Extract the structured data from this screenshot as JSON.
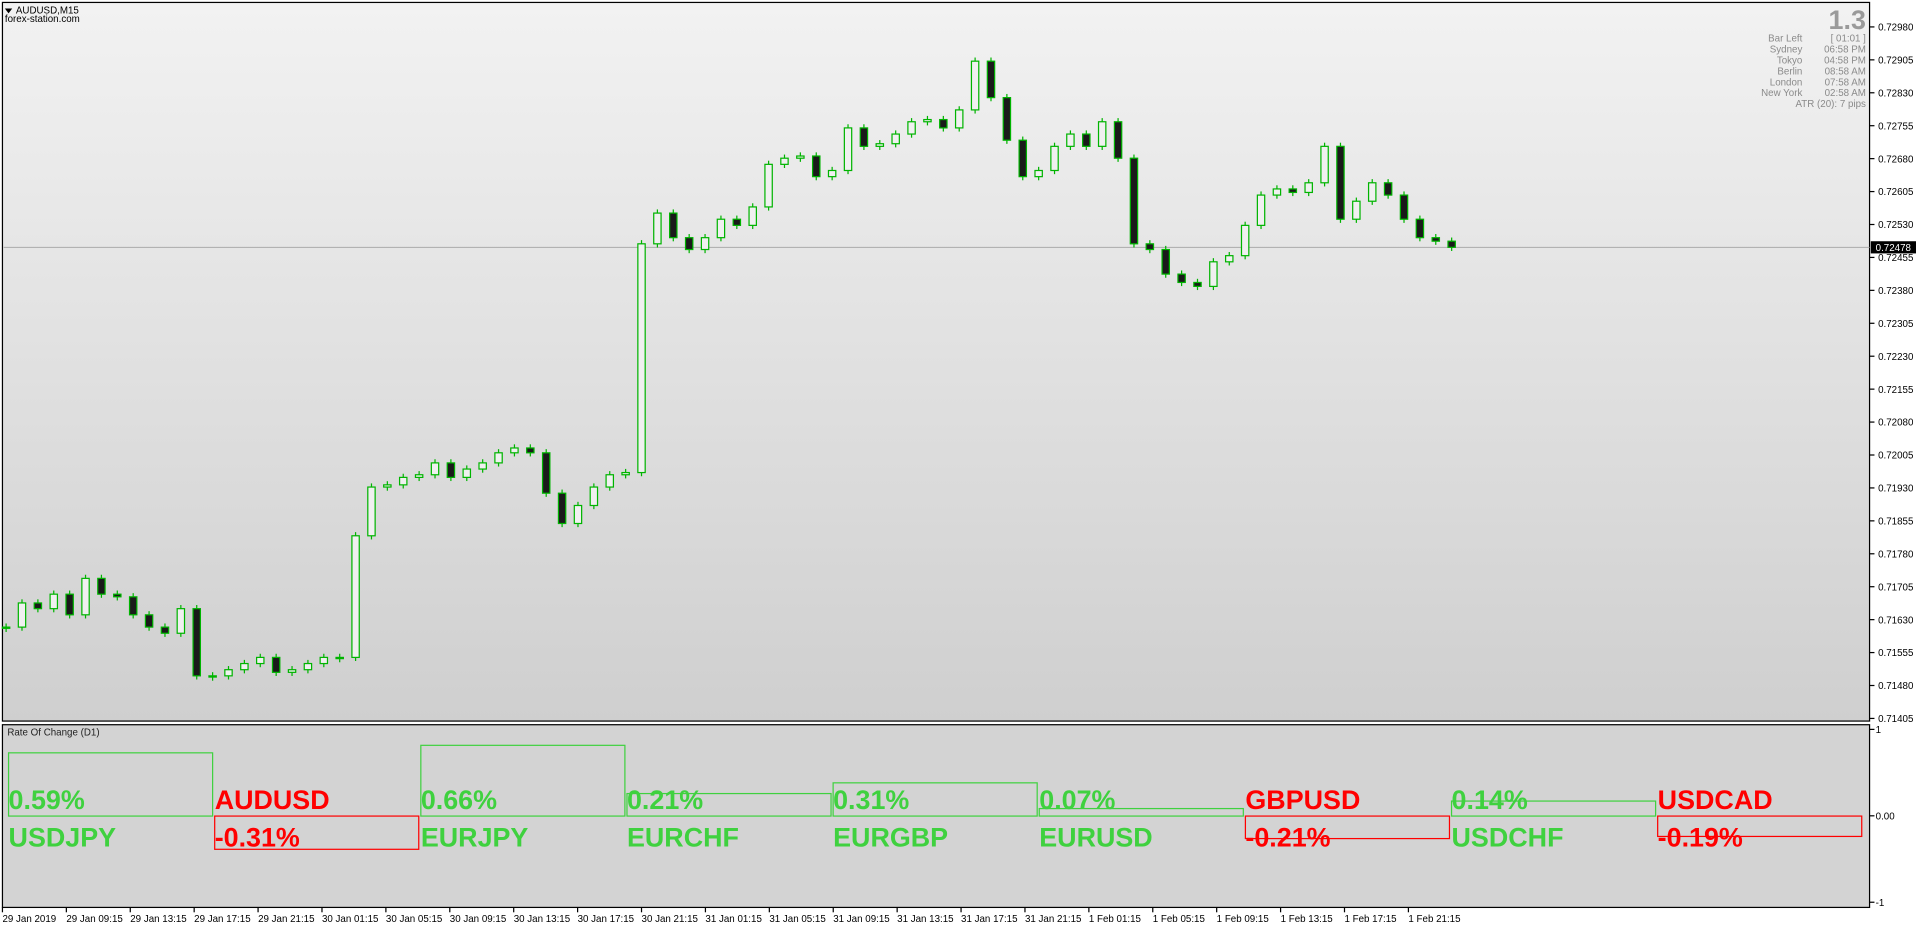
{
  "chart_data": [
    {
      "type": "candlestick",
      "title": "AUDUSD,M15",
      "subtitle": "forex-station.com",
      "color": "#00b400",
      "close": [
        0.71613,
        0.71668,
        0.71655,
        0.71688,
        0.71641,
        0.71724,
        0.71688,
        0.71682,
        0.71641,
        0.71613,
        0.71599,
        0.71655,
        0.71502,
        0.71502,
        0.71516,
        0.7153,
        0.71544,
        0.7151,
        0.71516,
        0.7153,
        0.71544,
        0.71544,
        0.71821,
        0.71932,
        0.71937,
        0.71954,
        0.7196,
        0.71987,
        0.71954,
        0.71973,
        0.71987,
        0.7201,
        0.72021,
        0.7201,
        0.71918,
        0.71849,
        0.7189,
        0.71932,
        0.7196,
        0.71965,
        0.72486,
        0.72556,
        0.725,
        0.72473,
        0.725,
        0.72542,
        0.72528,
        0.7257,
        0.72667,
        0.72681,
        0.72686,
        0.72639,
        0.72653,
        0.7275,
        0.72708,
        0.72714,
        0.72736,
        0.72764,
        0.72769,
        0.7275,
        0.72791,
        0.72902,
        0.72819,
        0.72722,
        0.72639,
        0.72653,
        0.72708,
        0.72736,
        0.72708,
        0.72764,
        0.72681,
        0.72486,
        0.72473,
        0.72417,
        0.72398,
        0.72389,
        0.72445,
        0.72459,
        0.72528,
        0.72597,
        0.72611,
        0.72603,
        0.72625,
        0.72708,
        0.72542,
        0.72583,
        0.72625,
        0.72597,
        0.72542,
        0.725,
        0.72492,
        0.72478
      ],
      "ylim": [
        0.71399,
        0.73033
      ],
      "yticks": [
        {
          "value": 0.7298,
          "label": "0.72980"
        },
        {
          "value": 0.72905,
          "label": "0.72905"
        },
        {
          "value": 0.7283,
          "label": "0.72830"
        },
        {
          "value": 0.72755,
          "label": "0.72755"
        },
        {
          "value": 0.7268,
          "label": "0.72680"
        },
        {
          "value": 0.72605,
          "label": "0.72605"
        },
        {
          "value": 0.7253,
          "label": "0.72530"
        },
        {
          "value": 0.72455,
          "label": "0.72455"
        },
        {
          "value": 0.7238,
          "label": "0.72380"
        },
        {
          "value": 0.72305,
          "label": "0.72305"
        },
        {
          "value": 0.7223,
          "label": "0.72230"
        },
        {
          "value": 0.72155,
          "label": "0.72155"
        },
        {
          "value": 0.7208,
          "label": "0.72080"
        },
        {
          "value": 0.72005,
          "label": "0.72005"
        },
        {
          "value": 0.7193,
          "label": "0.71930"
        },
        {
          "value": 0.71855,
          "label": "0.71855"
        },
        {
          "value": 0.7178,
          "label": "0.71780"
        },
        {
          "value": 0.71705,
          "label": "0.71705"
        },
        {
          "value": 0.7163,
          "label": "0.71630"
        },
        {
          "value": 0.71555,
          "label": "0.71555"
        },
        {
          "value": 0.7148,
          "label": "0.71480"
        },
        {
          "value": 0.71405,
          "label": "0.71405"
        }
      ],
      "current_price": {
        "value": 0.72478,
        "label": "0.72478"
      },
      "time_labels": [
        "29 Jan 2019",
        "29 Jan 09:15",
        "29 Jan 13:15",
        "29 Jan 17:15",
        "29 Jan 21:15",
        "30 Jan 01:15",
        "30 Jan 05:15",
        "30 Jan 09:15",
        "30 Jan 13:15",
        "30 Jan 17:15",
        "30 Jan 21:15",
        "31 Jan 01:15",
        "31 Jan 05:15",
        "31 Jan 09:15",
        "31 Jan 13:15",
        "31 Jan 17:15",
        "31 Jan 21:15",
        "1 Feb 01:15",
        "1 Feb 05:15",
        "1 Feb 09:15",
        "1 Feb 13:15",
        "1 Feb 17:15",
        "1 Feb 21:15"
      ],
      "info_panel": {
        "big": "1.3",
        "rows": [
          [
            "Bar Left",
            "[ 01:01 ]"
          ],
          [
            "Sydney",
            "06:58 PM"
          ],
          [
            "Tokyo",
            "04:58 PM"
          ],
          [
            "Berlin",
            "08:58 AM"
          ],
          [
            "London",
            "07:58 AM"
          ],
          [
            "New York",
            "02:58 AM"
          ]
        ],
        "atr": "ATR (20): 7 pips"
      }
    },
    {
      "type": "roc",
      "title": "Rate Of Change (D1)",
      "categories": [
        "USDJPY",
        "AUDUSD",
        "EURJPY",
        "EURCHF",
        "EURGBP",
        "EURUSD",
        "GBPUSD",
        "USDCHF",
        "USDCAD"
      ],
      "values": [
        0.59,
        -0.31,
        0.66,
        0.21,
        0.31,
        0.07,
        -0.21,
        0.14,
        -0.19
      ],
      "value_labels": [
        "0.59%",
        "-0.31%",
        "0.66%",
        "0.21%",
        "0.31%",
        "0.07%",
        "-0.21%",
        "0.14%",
        "-0.19%"
      ],
      "colors": {
        "up": "#3fd13f",
        "down": "#ff0000"
      },
      "ylim": [
        -1.06,
        1.04
      ],
      "yticks": [
        1,
        {
          "value": 0,
          "label": "0.00"
        },
        -1
      ]
    }
  ]
}
